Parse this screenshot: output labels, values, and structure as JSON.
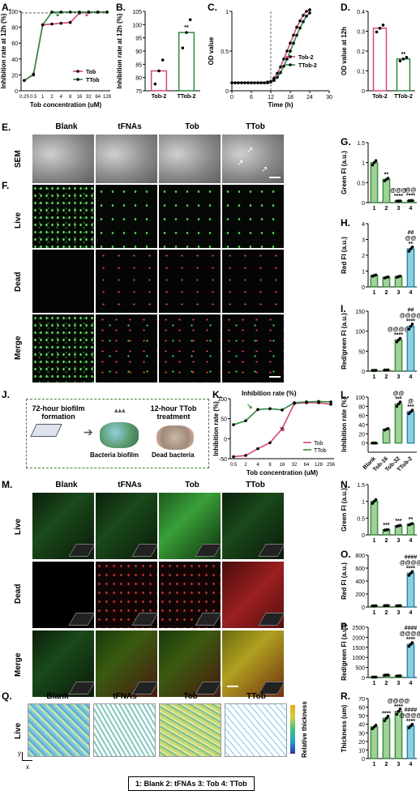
{
  "panels": {
    "A": {
      "label": "A."
    },
    "B": {
      "label": "B."
    },
    "C": {
      "label": "C."
    },
    "D": {
      "label": "D."
    },
    "E": {
      "label": "E."
    },
    "F": {
      "label": "F."
    },
    "G": {
      "label": "G."
    },
    "H": {
      "label": "H."
    },
    "I": {
      "label": "I."
    },
    "J": {
      "label": "J."
    },
    "K": {
      "label": "K."
    },
    "L": {
      "label": "L."
    },
    "M": {
      "label": "M."
    },
    "N": {
      "label": "N."
    },
    "O": {
      "label": "O."
    },
    "P": {
      "label": "P."
    },
    "Q": {
      "label": "Q."
    },
    "R": {
      "label": "R."
    }
  },
  "image_columns": [
    "Blank",
    "tFNAs",
    "Tob",
    "TTob"
  ],
  "rows_EF": [
    "SEM",
    "Live",
    "Dead",
    "Merge"
  ],
  "rows_M": [
    "Live",
    "Dead",
    "Merge"
  ],
  "rows_Q": [
    "Live"
  ],
  "Q_colorbar_label": "Relative thickness",
  "Q_axes": {
    "y": "y",
    "x": "x"
  },
  "legend_bottom": "1: Blank    2: tFNAs    3: Tob    4: TTob",
  "J": {
    "step1": "72-hour biofilm formation",
    "step2": "12-hour TTob treatment",
    "lab_biofilm": "Bacteria biofilm",
    "lab_dead": "Dead bacteria"
  },
  "chart_data": [
    {
      "id": "A",
      "type": "line",
      "ylabel": "Inhibition rate at 12h (%)",
      "xlabel": "Tob concentration (uM)",
      "categories": [
        "0.25",
        "0.5",
        "1",
        "2",
        "4",
        "8",
        "16",
        "32",
        "64",
        "128"
      ],
      "ylim": [
        0,
        100
      ],
      "yticks": [
        0,
        20,
        40,
        60,
        80,
        100
      ],
      "series": [
        {
          "name": "Tob",
          "color": "#d9457a",
          "values": [
            13,
            20,
            83,
            84,
            85,
            86,
            98,
            99,
            99,
            99
          ]
        },
        {
          "name": "TTob",
          "color": "#2e8b3e",
          "values": [
            13,
            21,
            83,
            99,
            99,
            99,
            99,
            99,
            99,
            99
          ]
        }
      ]
    },
    {
      "id": "B",
      "type": "bar",
      "ylabel": "Inhibition rate at 12h (%)",
      "categories": [
        "Tob-2",
        "TTob-2"
      ],
      "values": [
        82.5,
        97
      ],
      "colors": [
        "#d9457a",
        "#2e8b3e"
      ],
      "ylim": [
        75,
        105
      ],
      "yticks": [
        75,
        80,
        85,
        90,
        95,
        100,
        105
      ],
      "annotations": [
        "",
        "**"
      ]
    },
    {
      "id": "C",
      "type": "line",
      "ylabel": "OD value",
      "xlabel": "Time (h)",
      "x": [
        0,
        1,
        2,
        3,
        4,
        5,
        6,
        7,
        8,
        9,
        10,
        11,
        12,
        13,
        14,
        15,
        16,
        17,
        18,
        19,
        20,
        21,
        22,
        23,
        24
      ],
      "ylim": [
        0,
        1.0
      ],
      "yticks": [
        0.0,
        0.5,
        1.0
      ],
      "xticks": [
        0,
        6,
        12,
        18,
        24,
        30
      ],
      "series": [
        {
          "name": "Tob-2",
          "color": "#d9457a",
          "values": [
            0.1,
            0.1,
            0.1,
            0.1,
            0.1,
            0.1,
            0.1,
            0.1,
            0.1,
            0.1,
            0.1,
            0.11,
            0.12,
            0.16,
            0.22,
            0.3,
            0.4,
            0.5,
            0.6,
            0.7,
            0.8,
            0.88,
            0.95,
            1.0,
            1.02
          ]
        },
        {
          "name": "TTob-2",
          "color": "#2e8b3e",
          "values": [
            0.1,
            0.1,
            0.1,
            0.1,
            0.1,
            0.1,
            0.1,
            0.1,
            0.1,
            0.1,
            0.1,
            0.1,
            0.11,
            0.13,
            0.17,
            0.23,
            0.31,
            0.4,
            0.5,
            0.6,
            0.7,
            0.79,
            0.87,
            0.94,
            0.98
          ]
        }
      ]
    },
    {
      "id": "D",
      "type": "bar",
      "ylabel": "OD value at 12h",
      "categories": [
        "Tob-2",
        "TTob-2"
      ],
      "values": [
        0.315,
        0.16
      ],
      "colors": [
        "#d9457a",
        "#2e8b3e"
      ],
      "ylim": [
        0,
        0.4
      ],
      "yticks": [
        0.0,
        0.1,
        0.2,
        0.3,
        0.4
      ],
      "annotations": [
        "",
        "**"
      ]
    },
    {
      "id": "G",
      "type": "bar",
      "ylabel": "Green FI (a.u.)",
      "categories": [
        "1",
        "2",
        "3",
        "4"
      ],
      "values": [
        1.0,
        0.58,
        0.04,
        0.05
      ],
      "ylim": [
        0,
        1.5
      ],
      "yticks": [
        0.0,
        0.5,
        1.0,
        1.5
      ],
      "annotations": [
        "",
        "**",
        "@@@\n****",
        "@@\n****"
      ]
    },
    {
      "id": "H",
      "type": "bar",
      "ylabel": "Red FI (a.u.)",
      "categories": [
        "1",
        "2",
        "3",
        "4"
      ],
      "values": [
        0.72,
        0.6,
        0.65,
        2.4
      ],
      "ylim": [
        0,
        4
      ],
      "yticks": [
        0,
        1,
        2,
        3,
        4
      ],
      "annotations": [
        "",
        "",
        "",
        "##\n@@\n**"
      ]
    },
    {
      "id": "I",
      "type": "bar",
      "ylabel": "Red/green FI (a.u.)",
      "categories": [
        "1",
        "2",
        "3",
        "4"
      ],
      "values": [
        2,
        3,
        78,
        112
      ],
      "ylim": [
        0,
        150
      ],
      "yticks": [
        0,
        50,
        100,
        150
      ],
      "annotations": [
        "",
        "",
        "@@@@\n****",
        "##\n@@@@\n****"
      ]
    },
    {
      "id": "K",
      "type": "line",
      "ylabel": "Inhibition rate (%)",
      "xlabel": "Tob concentration (uM)",
      "categories": [
        "0.5",
        "2",
        "4",
        "8",
        "16",
        "32",
        "64",
        "128",
        "256"
      ],
      "ylim": [
        -50,
        100
      ],
      "yticks": [
        -50,
        0,
        50,
        100
      ],
      "series": [
        {
          "name": "Tob",
          "color": "#d9457a",
          "values": [
            -45,
            -42,
            -25,
            -10,
            25,
            88,
            90,
            90,
            86
          ]
        },
        {
          "name": "TTob",
          "color": "#2e8b3e",
          "values": [
            35,
            45,
            73,
            75,
            72,
            90,
            92,
            93,
            92
          ]
        }
      ]
    },
    {
      "id": "L",
      "type": "bar",
      "ylabel": "Inhibition rate (%)",
      "categories": [
        "Blank",
        "Tob-16",
        "Tob-32",
        "TTob-2"
      ],
      "values": [
        0,
        30,
        85,
        68
      ],
      "ylim": [
        -20,
        100
      ],
      "yticks": [
        0,
        20,
        40,
        60,
        80,
        100
      ],
      "annotations": [
        "",
        "",
        "@@\n***",
        "@\n***"
      ]
    },
    {
      "id": "N",
      "type": "bar",
      "ylabel": "Green FI (a.u.)",
      "categories": [
        "1",
        "2",
        "3",
        "4"
      ],
      "values": [
        1.0,
        0.15,
        0.27,
        0.32
      ],
      "ylim": [
        0,
        1.5
      ],
      "yticks": [
        0.0,
        0.5,
        1.0,
        1.5
      ],
      "annotations": [
        "",
        "***",
        "***",
        "**"
      ]
    },
    {
      "id": "O",
      "type": "bar",
      "ylabel": "Red FI (a.u.)",
      "categories": [
        "1",
        "2",
        "3",
        "4"
      ],
      "values": [
        18,
        22,
        20,
        520
      ],
      "ylim": [
        0,
        800
      ],
      "yticks": [
        0,
        200,
        400,
        600,
        800
      ],
      "annotations": [
        "",
        "",
        "",
        "####\n@@@@\n****"
      ]
    },
    {
      "id": "P",
      "type": "bar",
      "ylabel": "Red/green FI (a.u.)",
      "categories": [
        "1",
        "2",
        "3",
        "4"
      ],
      "values": [
        20,
        120,
        80,
        1650
      ],
      "ylim": [
        0,
        2500
      ],
      "yticks": [
        0,
        500,
        1000,
        1500,
        2000,
        2500
      ],
      "annotations": [
        "",
        "",
        "",
        "####\n@@@@\n****"
      ]
    },
    {
      "id": "R",
      "type": "bar",
      "ylabel": "Thickness (um)",
      "categories": [
        "1",
        "2",
        "3",
        "4"
      ],
      "values": [
        37,
        47,
        55,
        38
      ],
      "ylim": [
        0,
        70
      ],
      "yticks": [
        0,
        10,
        20,
        30,
        40,
        50,
        60,
        70
      ],
      "annotations": [
        "",
        "****",
        "@@@@\n****",
        "####\n@@@@\n****"
      ]
    }
  ]
}
